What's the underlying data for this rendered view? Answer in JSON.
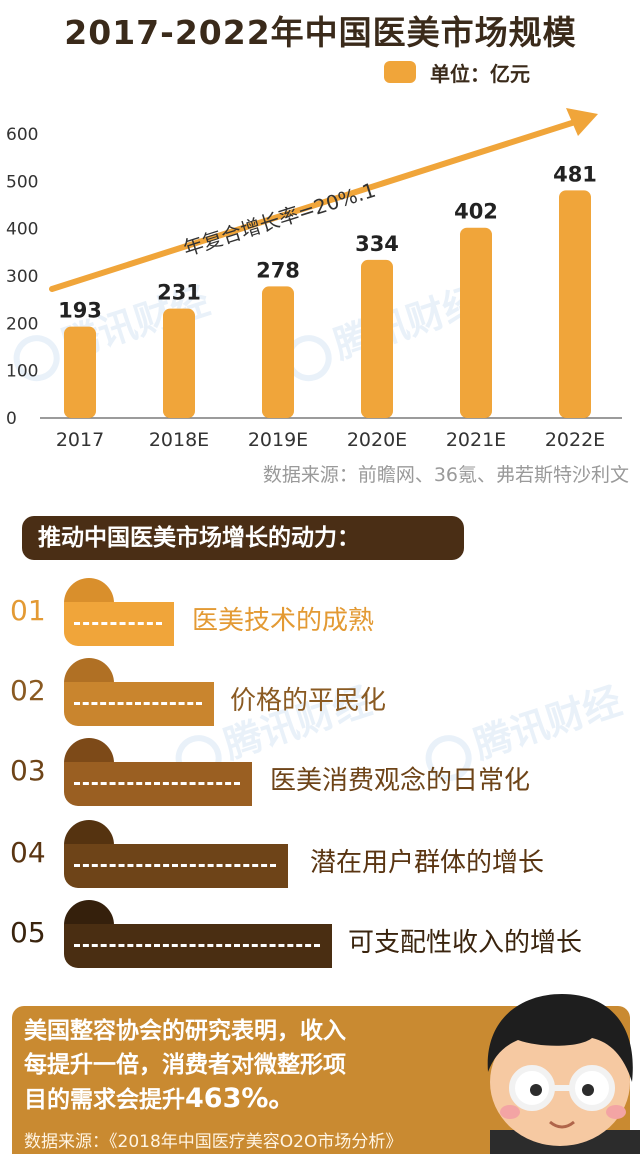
{
  "title": "2017-2022年中国医美市场规模",
  "legend": {
    "label": "单位：亿元",
    "color": "#f0a53a"
  },
  "chart_data": {
    "type": "bar",
    "title": "2017-2022年中国医美市场规模",
    "unit": "单位：亿元",
    "categories": [
      "2017",
      "2018E",
      "2019E",
      "2020E",
      "2021E",
      "2022E"
    ],
    "values": [
      193,
      231,
      278,
      334,
      402,
      481
    ],
    "value_labels": [
      "193",
      "231",
      "278",
      "334",
      "402",
      "481"
    ],
    "yticks": [
      "0",
      "100",
      "200",
      "300",
      "400",
      "500",
      "600"
    ],
    "ylim": [
      0,
      600
    ],
    "annotation": "年复合增长率=20%.1",
    "bar_color": "#f0a53a",
    "grid": false
  },
  "source_chart": "数据来源：前瞻网、36氪、弗若斯特沙利文",
  "drivers": {
    "heading": "推动中国医美市场增长的动力：",
    "items": [
      {
        "num": "01",
        "label": "医美技术的成熟",
        "bar_color": "#f0a53a",
        "tab_color": "#d98f2c",
        "label_color": "#e39a34"
      },
      {
        "num": "02",
        "label": "价格的平民化",
        "bar_color": "#c9852e",
        "tab_color": "#b07024",
        "label_color": "#8a5a22"
      },
      {
        "num": "03",
        "label": "医美消费观念的日常化",
        "bar_color": "#9a5f22",
        "tab_color": "#7d4a18",
        "label_color": "#6e4418"
      },
      {
        "num": "04",
        "label": "潜在用户群体的增长",
        "bar_color": "#6e4418",
        "tab_color": "#553310",
        "label_color": "#5a3512"
      },
      {
        "num": "05",
        "label": "可支配性收入的增长",
        "bar_color": "#4a2e12",
        "tab_color": "#35200c",
        "label_color": "#3a240e"
      }
    ]
  },
  "note": {
    "line1": "美国整容协会的研究表明，收入",
    "line2": "每提升一倍，消费者对微整形项",
    "line3_prefix": "目的需求会提升",
    "line3_emph": "463%。",
    "source": "数据来源：《2018年中国医疗美容O2O市场分析》"
  },
  "watermark": "腾讯财经"
}
